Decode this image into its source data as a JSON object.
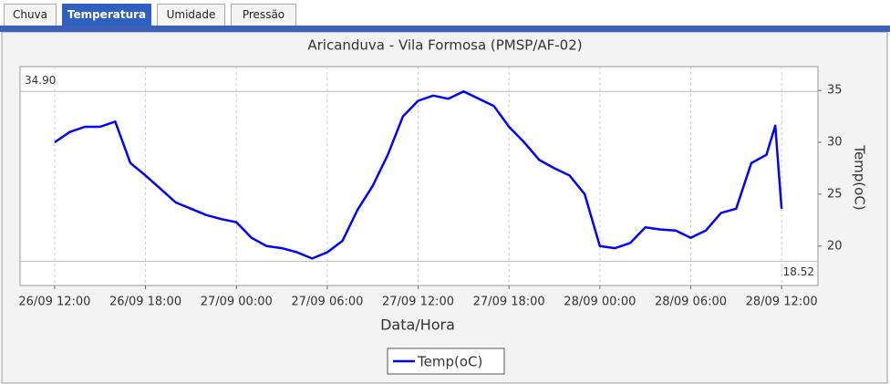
{
  "tabs": [
    "Chuva",
    "Temperatura",
    "Umidade",
    "Pressão"
  ],
  "chart_data": {
    "type": "line",
    "title": "Aricanduva - Vila Formosa (PMSP/AF-02)",
    "x_label": "Data/Hora",
    "y_label": "Temp(oC)",
    "x": [
      "26/09 12:00",
      "26/09 13:00",
      "26/09 14:00",
      "26/09 15:00",
      "26/09 16:00",
      "26/09 17:00",
      "26/09 18:00",
      "26/09 19:00",
      "26/09 20:00",
      "26/09 21:00",
      "26/09 22:00",
      "26/09 23:00",
      "27/09 00:00",
      "27/09 01:00",
      "27/09 02:00",
      "27/09 03:00",
      "27/09 04:00",
      "27/09 05:00",
      "27/09 06:00",
      "27/09 07:00",
      "27/09 08:00",
      "27/09 09:00",
      "27/09 10:00",
      "27/09 11:00",
      "27/09 12:00",
      "27/09 13:00",
      "27/09 14:00",
      "27/09 15:00",
      "27/09 16:00",
      "27/09 17:00",
      "27/09 18:00",
      "27/09 19:00",
      "27/09 20:00",
      "27/09 21:00",
      "27/09 22:00",
      "27/09 23:00",
      "28/09 00:00",
      "28/09 01:00",
      "28/09 02:00",
      "28/09 03:00",
      "28/09 04:00",
      "28/09 05:00",
      "28/09 06:00",
      "28/09 07:00",
      "28/09 08:00",
      "28/09 09:00",
      "28/09 10:00",
      "28/09 11:00",
      "28/09 11:35",
      "28/09 12:00"
    ],
    "series": [
      {
        "name": "Temp(oC)",
        "color": "#0000ff",
        "values": [
          30.0,
          31.0,
          31.5,
          31.5,
          32.0,
          28.0,
          26.8,
          25.5,
          24.2,
          23.6,
          23.0,
          22.6,
          22.3,
          20.8,
          20.0,
          19.8,
          19.4,
          18.8,
          19.4,
          20.5,
          23.5,
          25.8,
          28.8,
          32.5,
          34.0,
          34.5,
          34.2,
          34.9,
          34.2,
          33.5,
          31.5,
          30.0,
          28.3,
          27.5,
          26.8,
          25.0,
          20.0,
          19.8,
          20.3,
          21.8,
          21.6,
          21.5,
          20.8,
          21.5,
          23.2,
          23.6,
          28.0,
          28.8,
          31.6,
          23.6
        ]
      }
    ],
    "xlim": [
      "26/09 09:43",
      "28/09 14:24"
    ],
    "xticks": [
      "26/09 12:00",
      "26/09 18:00",
      "27/09 00:00",
      "27/09 06:00",
      "27/09 12:00",
      "27/09 18:00",
      "28/09 00:00",
      "28/09 06:00",
      "28/09 12:00"
    ],
    "ylim": [
      16.2,
      37.3
    ],
    "yticks": [
      20,
      25,
      30,
      35
    ],
    "max_line": {
      "value": 34.9,
      "label": "34.90"
    },
    "min_line": {
      "value": 18.52,
      "label": "18.52"
    },
    "grid": true
  }
}
